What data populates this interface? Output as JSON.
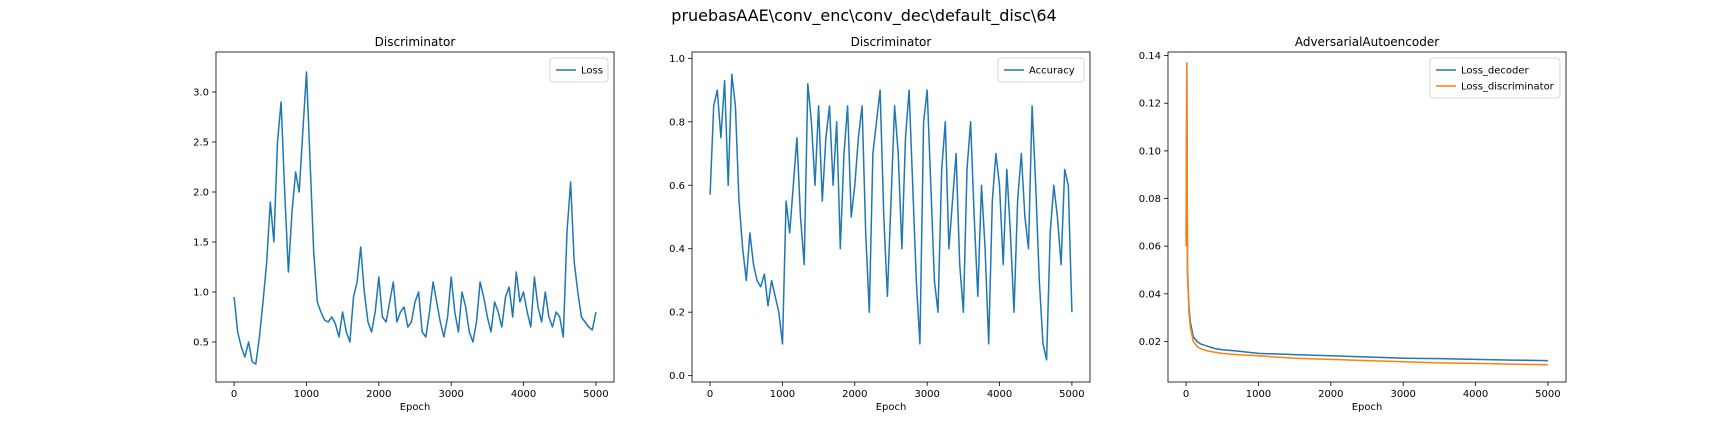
{
  "figure": {
    "suptitle": "pruebasAAE\\conv_enc\\conv_dec\\default_disc\\64"
  },
  "chart_data": [
    {
      "type": "line",
      "title": "Discriminator",
      "xlabel": "Epoch",
      "ylabel": "",
      "xlim": [
        -250,
        5250
      ],
      "ylim": [
        0.1,
        3.4
      ],
      "xticks": [
        0,
        1000,
        2000,
        3000,
        4000,
        5000
      ],
      "yticks": [
        0.5,
        1.0,
        1.5,
        2.0,
        2.5,
        3.0
      ],
      "ytick_labels": [
        "0.5",
        "1.0",
        "1.5",
        "2.0",
        "2.5",
        "3.0"
      ],
      "legend_position": "top-right",
      "grid": false,
      "series": [
        {
          "name": "Loss",
          "color": "#1f77b4",
          "x": [
            0,
            50,
            100,
            150,
            200,
            250,
            300,
            350,
            400,
            450,
            500,
            550,
            600,
            650,
            700,
            750,
            800,
            850,
            900,
            950,
            1000,
            1050,
            1100,
            1150,
            1200,
            1250,
            1300,
            1350,
            1400,
            1450,
            1500,
            1550,
            1600,
            1650,
            1700,
            1750,
            1800,
            1850,
            1900,
            1950,
            2000,
            2050,
            2100,
            2150,
            2200,
            2250,
            2300,
            2350,
            2400,
            2450,
            2500,
            2550,
            2600,
            2650,
            2700,
            2750,
            2800,
            2850,
            2900,
            2950,
            3000,
            3050,
            3100,
            3150,
            3200,
            3250,
            3300,
            3350,
            3400,
            3450,
            3500,
            3550,
            3600,
            3650,
            3700,
            3750,
            3800,
            3850,
            3900,
            3950,
            4000,
            4050,
            4100,
            4150,
            4200,
            4250,
            4300,
            4350,
            4400,
            4450,
            4500,
            4550,
            4600,
            4650,
            4700,
            4750,
            4800,
            4850,
            4900,
            4950,
            5000
          ],
          "y": [
            0.95,
            0.6,
            0.45,
            0.35,
            0.5,
            0.3,
            0.28,
            0.55,
            0.9,
            1.3,
            1.9,
            1.5,
            2.5,
            2.9,
            2.0,
            1.2,
            1.8,
            2.2,
            2.0,
            2.6,
            3.2,
            2.3,
            1.4,
            0.9,
            0.8,
            0.72,
            0.7,
            0.75,
            0.68,
            0.55,
            0.8,
            0.6,
            0.5,
            0.95,
            1.1,
            1.45,
            1.0,
            0.7,
            0.6,
            0.8,
            1.15,
            0.75,
            0.7,
            0.9,
            1.1,
            0.7,
            0.8,
            0.85,
            0.65,
            0.7,
            0.9,
            1.0,
            0.6,
            0.55,
            0.8,
            1.1,
            0.9,
            0.7,
            0.55,
            0.75,
            1.15,
            0.8,
            0.6,
            1.0,
            0.85,
            0.6,
            0.5,
            0.7,
            1.1,
            0.95,
            0.75,
            0.6,
            0.9,
            0.8,
            0.65,
            0.95,
            1.05,
            0.75,
            1.2,
            0.9,
            1.0,
            0.8,
            0.65,
            1.15,
            0.85,
            0.7,
            1.0,
            0.75,
            0.65,
            0.8,
            0.75,
            0.55,
            1.6,
            2.1,
            1.3,
            1.0,
            0.75,
            0.7,
            0.65,
            0.62,
            0.8
          ]
        }
      ]
    },
    {
      "type": "line",
      "title": "Discriminator",
      "xlabel": "Epoch",
      "ylabel": "",
      "xlim": [
        -250,
        5250
      ],
      "ylim": [
        -0.02,
        1.02
      ],
      "xticks": [
        0,
        1000,
        2000,
        3000,
        4000,
        5000
      ],
      "yticks": [
        0.0,
        0.2,
        0.4,
        0.6,
        0.8,
        1.0
      ],
      "ytick_labels": [
        "0.0",
        "0.2",
        "0.4",
        "0.6",
        "0.8",
        "1.0"
      ],
      "legend_position": "top-right",
      "grid": false,
      "series": [
        {
          "name": "Accuracy",
          "color": "#1f77b4",
          "x": [
            0,
            50,
            100,
            150,
            200,
            250,
            300,
            350,
            400,
            450,
            500,
            550,
            600,
            650,
            700,
            750,
            800,
            850,
            900,
            950,
            1000,
            1050,
            1100,
            1150,
            1200,
            1250,
            1300,
            1350,
            1400,
            1450,
            1500,
            1550,
            1600,
            1650,
            1700,
            1750,
            1800,
            1850,
            1900,
            1950,
            2000,
            2050,
            2100,
            2150,
            2200,
            2250,
            2300,
            2350,
            2400,
            2450,
            2500,
            2550,
            2600,
            2650,
            2700,
            2750,
            2800,
            2850,
            2900,
            2950,
            3000,
            3050,
            3100,
            3150,
            3200,
            3250,
            3300,
            3350,
            3400,
            3450,
            3500,
            3550,
            3600,
            3650,
            3700,
            3750,
            3800,
            3850,
            3900,
            3950,
            4000,
            4050,
            4100,
            4150,
            4200,
            4250,
            4300,
            4350,
            4400,
            4450,
            4500,
            4550,
            4600,
            4650,
            4700,
            4750,
            4800,
            4850,
            4900,
            4950,
            5000
          ],
          "y": [
            0.57,
            0.85,
            0.9,
            0.75,
            0.93,
            0.6,
            0.95,
            0.85,
            0.55,
            0.4,
            0.3,
            0.45,
            0.35,
            0.3,
            0.28,
            0.32,
            0.22,
            0.3,
            0.25,
            0.2,
            0.1,
            0.55,
            0.45,
            0.6,
            0.75,
            0.5,
            0.35,
            0.92,
            0.8,
            0.6,
            0.85,
            0.55,
            0.75,
            0.85,
            0.6,
            0.8,
            0.4,
            0.7,
            0.85,
            0.5,
            0.6,
            0.75,
            0.85,
            0.45,
            0.2,
            0.7,
            0.8,
            0.9,
            0.5,
            0.25,
            0.55,
            0.85,
            0.7,
            0.4,
            0.75,
            0.9,
            0.6,
            0.3,
            0.1,
            0.8,
            0.9,
            0.6,
            0.3,
            0.2,
            0.65,
            0.8,
            0.4,
            0.55,
            0.7,
            0.35,
            0.2,
            0.65,
            0.8,
            0.5,
            0.25,
            0.6,
            0.4,
            0.1,
            0.55,
            0.7,
            0.6,
            0.35,
            0.65,
            0.45,
            0.2,
            0.55,
            0.7,
            0.5,
            0.4,
            0.85,
            0.6,
            0.3,
            0.1,
            0.05,
            0.45,
            0.6,
            0.5,
            0.35,
            0.65,
            0.6,
            0.2
          ]
        }
      ]
    },
    {
      "type": "line",
      "title": "AdversarialAutoencoder",
      "xlabel": "Epoch",
      "ylabel": "",
      "xlim": [
        -250,
        5250
      ],
      "ylim": [
        0.003,
        0.1415
      ],
      "xticks": [
        0,
        1000,
        2000,
        3000,
        4000,
        5000
      ],
      "yticks": [
        0.02,
        0.04,
        0.06,
        0.08,
        0.1,
        0.12,
        0.14
      ],
      "ytick_labels": [
        "0.02",
        "0.04",
        "0.06",
        "0.08",
        "0.10",
        "0.12",
        "0.14"
      ],
      "legend_position": "top-right",
      "grid": false,
      "series": [
        {
          "name": "Loss_decoder",
          "color": "#1f77b4",
          "x": [
            0,
            10,
            20,
            30,
            40,
            60,
            80,
            100,
            150,
            200,
            300,
            400,
            500,
            700,
            1000,
            1500,
            2000,
            2500,
            3000,
            3500,
            4000,
            4500,
            5000
          ],
          "y": [
            0.064,
            0.136,
            0.05,
            0.041,
            0.034,
            0.028,
            0.025,
            0.022,
            0.02,
            0.019,
            0.018,
            0.017,
            0.0165,
            0.016,
            0.015,
            0.0145,
            0.014,
            0.0135,
            0.013,
            0.0128,
            0.0125,
            0.0122,
            0.012
          ]
        },
        {
          "name": "Loss_discriminator",
          "color": "#ff7f0e",
          "x": [
            0,
            10,
            20,
            30,
            40,
            60,
            80,
            100,
            150,
            200,
            300,
            400,
            500,
            700,
            1000,
            1500,
            2000,
            2500,
            3000,
            3500,
            4000,
            4500,
            5000
          ],
          "y": [
            0.06,
            0.137,
            0.048,
            0.04,
            0.032,
            0.026,
            0.023,
            0.02,
            0.018,
            0.017,
            0.016,
            0.0155,
            0.015,
            0.0145,
            0.014,
            0.013,
            0.0125,
            0.012,
            0.0115,
            0.011,
            0.0108,
            0.0105,
            0.0102
          ]
        }
      ]
    }
  ]
}
